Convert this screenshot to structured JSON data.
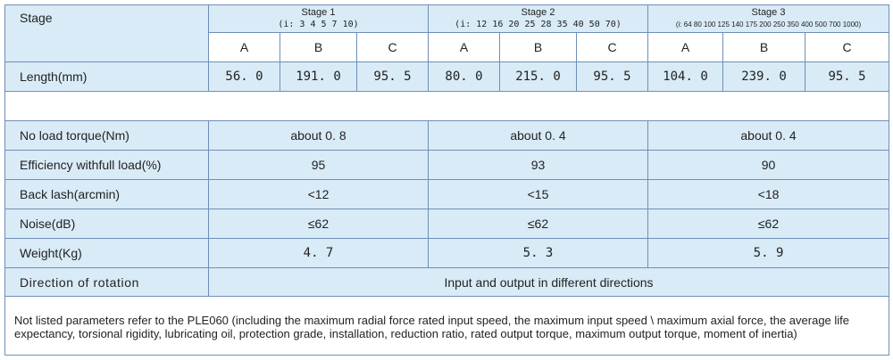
{
  "header": {
    "stage_label": "Stage",
    "stages": [
      {
        "title": "Stage 1",
        "ratios": "(i: 3 4 5 7 10)"
      },
      {
        "title": "Stage 2",
        "ratios": "(i: 12 16 20 25 28 35 40 50 70)"
      },
      {
        "title": "Stage 3",
        "ratios": "(i: 64 80 100 125 140 175 200 250 350 400 500 700 1000)"
      }
    ],
    "subcols": [
      "A",
      "B",
      "C",
      "A",
      "B",
      "C",
      "A",
      "B",
      "C"
    ]
  },
  "length": {
    "label": "Length(mm)",
    "values": [
      "56. 0",
      "191. 0",
      "95. 5",
      "80. 0",
      "215. 0",
      "95. 5",
      "104. 0",
      "239. 0",
      "95. 5"
    ]
  },
  "specs": [
    {
      "label": "No load torque(Nm)",
      "values": [
        "about 0. 8",
        "about 0. 4",
        "about 0. 4"
      ]
    },
    {
      "label": "Efficiency withfull load(%)",
      "values": [
        "95",
        "93",
        "90"
      ]
    },
    {
      "label": "Back lash(arcmin)",
      "values": [
        "<12",
        "<15",
        "<18"
      ]
    },
    {
      "label": "Noise(dB)",
      "values": [
        "≤62",
        "≤62",
        "≤62"
      ]
    },
    {
      "label": "Weight(Kg)",
      "values": [
        "4. 7",
        "5. 3",
        "5. 9"
      ]
    }
  ],
  "direction": {
    "label": "Direction of rotation",
    "value": "Input and output in different directions"
  },
  "note": "Not listed parameters refer to the PLE060 (including the maximum radial force rated input speed, the maximum input speed \\ maximum axial force, the average life expectancy, torsional rigidity, lubricating oil, protection grade, installation, reduction ratio, rated output torque, maximum output torque, moment of inertia)"
}
